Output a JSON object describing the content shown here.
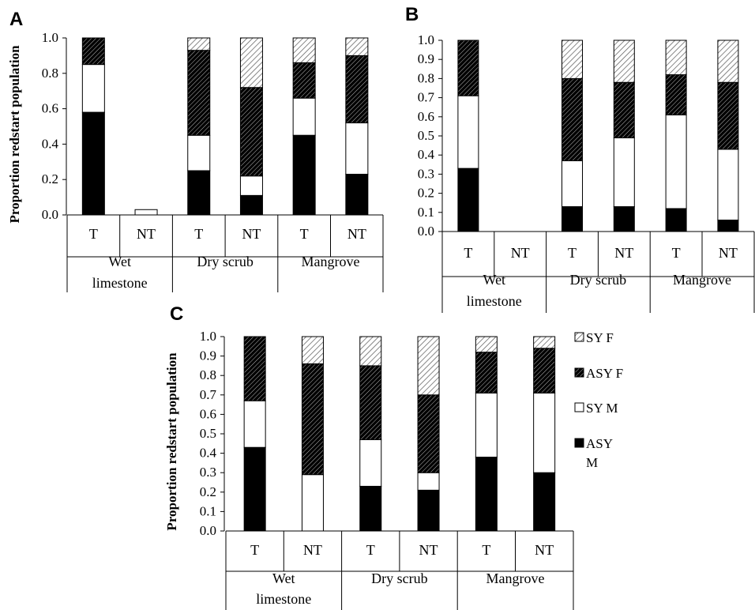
{
  "legend": {
    "entries": [
      {
        "label": "SY F",
        "pattern": "light-hatch"
      },
      {
        "label": "ASY F",
        "pattern": "dark-hatch"
      },
      {
        "label": "SY M",
        "pattern": "white"
      },
      {
        "label": "ASY M",
        "pattern": "black"
      }
    ]
  },
  "chart_data": [
    {
      "panel": "A",
      "type": "bar",
      "stacked": true,
      "ylabel": "Proportion redstart population",
      "ylim": [
        0,
        1.0
      ],
      "yticks": [
        "0.0",
        "0.2",
        "0.4",
        "0.6",
        "0.8",
        "1.0"
      ],
      "groups": [
        "Wet limestone",
        "Dry scrub",
        "Mangrove"
      ],
      "categories": [
        "T",
        "NT",
        "T",
        "NT",
        "T",
        "NT"
      ],
      "series": [
        {
          "name": "ASY M",
          "values": [
            0.58,
            0.0,
            0.25,
            0.11,
            0.45,
            0.23
          ]
        },
        {
          "name": "SY M",
          "values": [
            0.27,
            0.03,
            0.2,
            0.11,
            0.21,
            0.29
          ]
        },
        {
          "name": "ASY F",
          "values": [
            0.15,
            0.0,
            0.48,
            0.5,
            0.2,
            0.38
          ]
        },
        {
          "name": "SY F",
          "values": [
            0.0,
            0.0,
            0.07,
            0.28,
            0.14,
            0.1
          ]
        }
      ]
    },
    {
      "panel": "B",
      "type": "bar",
      "stacked": true,
      "ylim": [
        0,
        1.0
      ],
      "yticks": [
        "0.0",
        "0.1",
        "0.2",
        "0.3",
        "0.4",
        "0.5",
        "0.6",
        "0.7",
        "0.8",
        "0.9",
        "1.0"
      ],
      "groups": [
        "Wet limestone",
        "Dry scrub",
        "Mangrove"
      ],
      "categories": [
        "T",
        "NT",
        "T",
        "NT",
        "T",
        "NT"
      ],
      "series": [
        {
          "name": "ASY M",
          "values": [
            0.33,
            0.0,
            0.13,
            0.13,
            0.12,
            0.06
          ]
        },
        {
          "name": "SY M",
          "values": [
            0.38,
            0.0,
            0.24,
            0.36,
            0.49,
            0.37
          ]
        },
        {
          "name": "ASY F",
          "values": [
            0.29,
            0.0,
            0.43,
            0.29,
            0.21,
            0.35
          ]
        },
        {
          "name": "SY F",
          "values": [
            0.0,
            0.0,
            0.2,
            0.22,
            0.18,
            0.22
          ]
        }
      ]
    },
    {
      "panel": "C",
      "type": "bar",
      "stacked": true,
      "ylabel": "Proportion redstart population",
      "ylim": [
        0,
        1.0
      ],
      "yticks": [
        "0.0",
        "0.1",
        "0.2",
        "0.3",
        "0.4",
        "0.5",
        "0.6",
        "0.7",
        "0.8",
        "0.9",
        "1.0"
      ],
      "groups": [
        "Wet limestone",
        "Dry scrub",
        "Mangrove"
      ],
      "categories": [
        "T",
        "NT",
        "T",
        "NT",
        "T",
        "NT"
      ],
      "series": [
        {
          "name": "ASY M",
          "values": [
            0.43,
            0.0,
            0.23,
            0.21,
            0.38,
            0.3
          ]
        },
        {
          "name": "SY M",
          "values": [
            0.24,
            0.29,
            0.24,
            0.09,
            0.33,
            0.41
          ]
        },
        {
          "name": "ASY F",
          "values": [
            0.33,
            0.57,
            0.38,
            0.4,
            0.21,
            0.23
          ]
        },
        {
          "name": "SY F",
          "values": [
            0.0,
            0.14,
            0.15,
            0.3,
            0.08,
            0.06
          ]
        }
      ]
    }
  ]
}
